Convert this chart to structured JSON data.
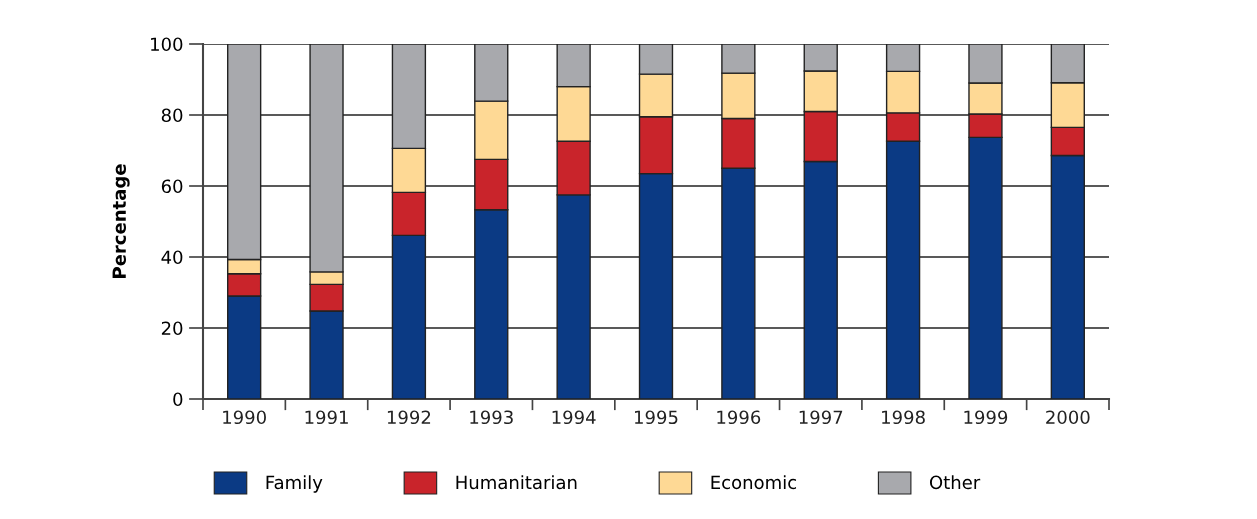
{
  "chart_data": {
    "type": "bar",
    "stacked": true,
    "ylabel": "Percentage",
    "categories": [
      "1990",
      "1991",
      "1992",
      "1993",
      "1994",
      "1995",
      "1996",
      "1997",
      "1998",
      "1999",
      "2000"
    ],
    "series": [
      {
        "name": "Family",
        "color": "#0b3a84",
        "values": [
          29.0,
          24.8,
          46.1,
          53.3,
          57.5,
          63.5,
          65.0,
          66.9,
          72.6,
          73.7,
          68.6
        ]
      },
      {
        "name": "Humanitarian",
        "color": "#c9242b",
        "values": [
          6.3,
          7.5,
          12.1,
          14.2,
          15.1,
          16.0,
          14.0,
          14.1,
          8.0,
          6.6,
          7.9
        ]
      },
      {
        "name": "Economic",
        "color": "#fed995",
        "values": [
          4.0,
          3.5,
          12.4,
          16.4,
          15.4,
          12.0,
          12.8,
          11.4,
          11.7,
          8.7,
          12.6
        ]
      },
      {
        "name": "Other",
        "color": "#a8a9ad",
        "values": [
          60.7,
          64.2,
          29.4,
          16.1,
          12.0,
          8.5,
          8.2,
          7.6,
          7.7,
          11.0,
          10.9
        ]
      }
    ],
    "ylim": [
      0,
      100
    ],
    "yticks": [
      0,
      20,
      40,
      60,
      80,
      100
    ],
    "grid": "y",
    "legend": "bottom"
  }
}
